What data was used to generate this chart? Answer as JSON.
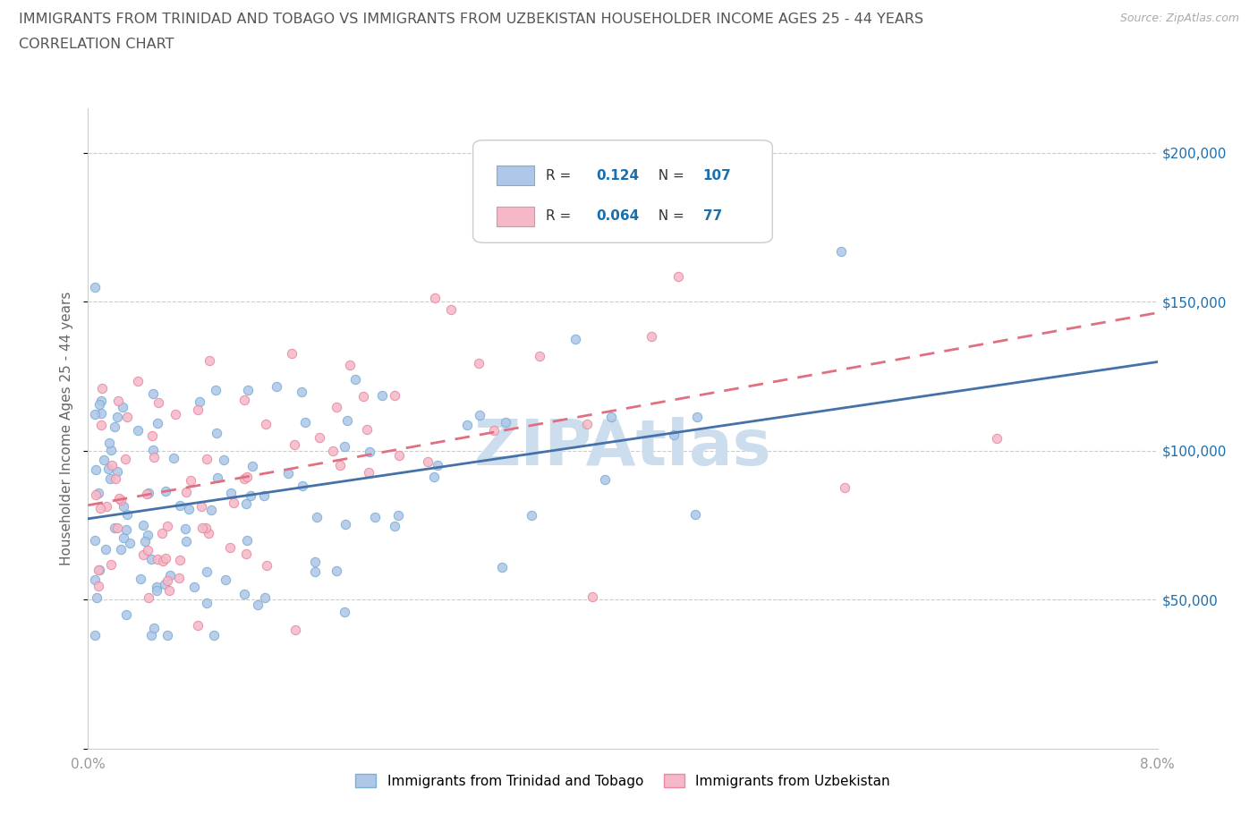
{
  "title_line1": "IMMIGRANTS FROM TRINIDAD AND TOBAGO VS IMMIGRANTS FROM UZBEKISTAN HOUSEHOLDER INCOME AGES 25 - 44 YEARS",
  "title_line2": "CORRELATION CHART",
  "source_text": "Source: ZipAtlas.com",
  "ylabel": "Householder Income Ages 25 - 44 years",
  "xlim": [
    0.0,
    0.08
  ],
  "ylim": [
    0,
    215000
  ],
  "yticks": [
    0,
    50000,
    100000,
    150000,
    200000
  ],
  "ytick_labels": [
    "",
    "$50,000",
    "$100,000",
    "$150,000",
    "$200,000"
  ],
  "xticks": [
    0.0,
    0.01,
    0.02,
    0.03,
    0.04,
    0.05,
    0.06,
    0.07,
    0.08
  ],
  "series1_color": "#aec6e8",
  "series2_color": "#f5b8c8",
  "series1_edge_color": "#7aafd4",
  "series2_edge_color": "#e88aa0",
  "series1_line_color": "#4472a8",
  "series2_line_color": "#e07080",
  "series1_label": "Immigrants from Trinidad and Tobago",
  "series2_label": "Immigrants from Uzbekistan",
  "R1": 0.124,
  "N1": 107,
  "R2": 0.064,
  "N2": 77,
  "legend_R_color": "#1a6faf",
  "watermark_text": "ZIPAtlas",
  "watermark_color": "#ccdded",
  "background_color": "#ffffff",
  "title_color": "#555555",
  "grid_color": "#cccccc",
  "tick_color": "#999999"
}
